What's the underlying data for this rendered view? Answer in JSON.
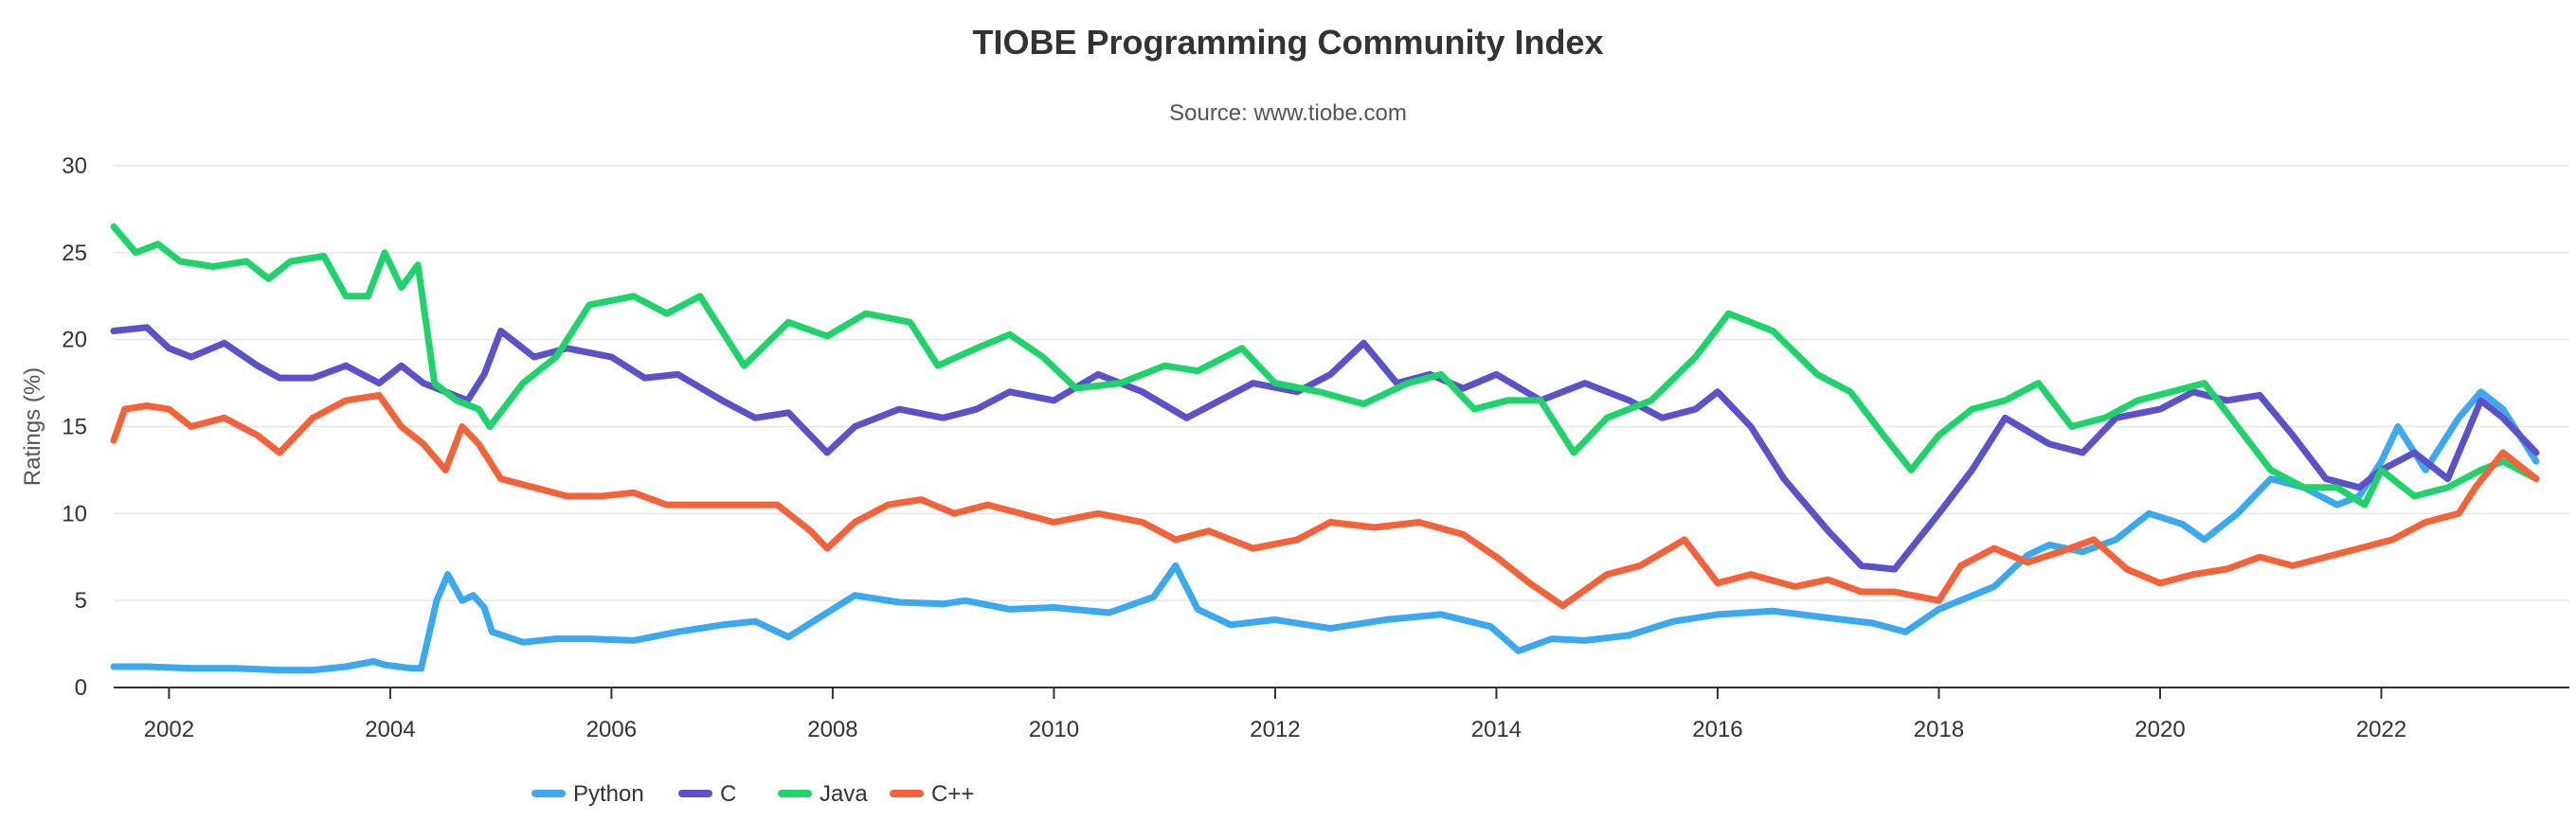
{
  "chart_data": {
    "type": "line",
    "title": "TIOBE Programming Community Index",
    "subtitle": "Source: www.tiobe.com",
    "ylabel": "Ratings (%)",
    "xlabel": "",
    "xlim": [
      2001.5,
      2023.7
    ],
    "ylim": [
      0,
      30
    ],
    "yticks": [
      0,
      5,
      10,
      15,
      20,
      25,
      30
    ],
    "xticks": [
      2002,
      2004,
      2006,
      2008,
      2010,
      2012,
      2014,
      2016,
      2018,
      2020,
      2022
    ],
    "grid": "horizontal",
    "legend": "bottom",
    "series": [
      {
        "name": "Python",
        "color": "#3ba8f0",
        "x": [
          2001.5,
          2001.8,
          2002.2,
          2002.6,
          2003.0,
          2003.3,
          2003.6,
          2003.85,
          2003.95,
          2004.2,
          2004.28,
          2004.42,
          2004.52,
          2004.65,
          2004.75,
          2004.85,
          2004.92,
          2005.2,
          2005.5,
          2005.8,
          2006.2,
          2006.6,
          2007.0,
          2007.3,
          2007.6,
          2008.0,
          2008.2,
          2008.6,
          2009.0,
          2009.2,
          2009.6,
          2010.0,
          2010.5,
          2010.9,
          2011.1,
          2011.3,
          2011.6,
          2012.0,
          2012.5,
          2013.0,
          2013.5,
          2013.95,
          2014.2,
          2014.5,
          2014.8,
          2015.2,
          2015.6,
          2016.0,
          2016.5,
          2017.0,
          2017.4,
          2017.7,
          2018.0,
          2018.5,
          2018.8,
          2019.0,
          2019.3,
          2019.6,
          2019.9,
          2020.2,
          2020.4,
          2020.7,
          2021.0,
          2021.3,
          2021.6,
          2021.8,
          2022.0,
          2022.15,
          2022.4,
          2022.7,
          2022.9,
          2023.1,
          2023.4
        ],
        "values": [
          1.2,
          1.2,
          1.1,
          1.1,
          1.0,
          1.0,
          1.2,
          1.5,
          1.3,
          1.1,
          1.1,
          5.0,
          6.5,
          5.0,
          5.3,
          4.6,
          3.2,
          2.6,
          2.8,
          2.8,
          2.7,
          3.2,
          3.6,
          3.8,
          2.9,
          4.5,
          5.3,
          4.9,
          4.8,
          5.0,
          4.5,
          4.6,
          4.3,
          5.2,
          7.0,
          4.5,
          3.6,
          3.9,
          3.4,
          3.9,
          4.2,
          3.5,
          2.1,
          2.8,
          2.7,
          3.0,
          3.8,
          4.2,
          4.4,
          4.0,
          3.7,
          3.2,
          4.5,
          5.8,
          7.6,
          8.2,
          7.8,
          8.5,
          10.0,
          9.4,
          8.5,
          10.0,
          12.0,
          11.5,
          10.5,
          11.0,
          13.0,
          15.0,
          12.5,
          15.5,
          17.0,
          16.0,
          13.0
        ]
      },
      {
        "name": "C",
        "color": "#5b52c9",
        "x": [
          2001.5,
          2001.8,
          2002.0,
          2002.2,
          2002.5,
          2002.8,
          2003.0,
          2003.3,
          2003.6,
          2003.9,
          2004.1,
          2004.3,
          2004.5,
          2004.7,
          2004.85,
          2005.0,
          2005.3,
          2005.6,
          2006.0,
          2006.3,
          2006.6,
          2007.0,
          2007.3,
          2007.6,
          2007.95,
          2008.2,
          2008.6,
          2009.0,
          2009.3,
          2009.6,
          2010.0,
          2010.4,
          2010.8,
          2011.2,
          2011.5,
          2011.8,
          2012.2,
          2012.5,
          2012.8,
          2013.1,
          2013.4,
          2013.7,
          2014.0,
          2014.4,
          2014.8,
          2015.2,
          2015.5,
          2015.8,
          2016.0,
          2016.3,
          2016.6,
          2017.0,
          2017.3,
          2017.6,
          2018.0,
          2018.3,
          2018.6,
          2019.0,
          2019.3,
          2019.6,
          2020.0,
          2020.3,
          2020.6,
          2020.9,
          2021.2,
          2021.5,
          2021.8,
          2022.0,
          2022.3,
          2022.6,
          2022.9,
          2023.1,
          2023.4
        ],
        "values": [
          20.5,
          20.7,
          19.5,
          19.0,
          19.8,
          18.5,
          17.8,
          17.8,
          18.5,
          17.5,
          18.5,
          17.5,
          17.0,
          16.5,
          18.0,
          20.5,
          19.0,
          19.5,
          19.0,
          17.8,
          18.0,
          16.5,
          15.5,
          15.8,
          13.5,
          15.0,
          16.0,
          15.5,
          16.0,
          17.0,
          16.5,
          18.0,
          17.0,
          15.5,
          16.5,
          17.5,
          17.0,
          18.0,
          19.8,
          17.5,
          18.0,
          17.2,
          18.0,
          16.5,
          17.5,
          16.5,
          15.5,
          16.0,
          17.0,
          15.0,
          12.0,
          9.0,
          7.0,
          6.8,
          10.0,
          12.5,
          15.5,
          14.0,
          13.5,
          15.5,
          16.0,
          17.0,
          16.5,
          16.8,
          14.5,
          12.0,
          11.5,
          12.5,
          13.5,
          12.0,
          16.5,
          15.5,
          13.5
        ]
      },
      {
        "name": "Java",
        "color": "#1ed46a",
        "x": [
          2001.5,
          2001.7,
          2001.9,
          2002.1,
          2002.4,
          2002.7,
          2002.9,
          2003.1,
          2003.4,
          2003.6,
          2003.8,
          2003.95,
          2004.1,
          2004.25,
          2004.4,
          2004.6,
          2004.8,
          2004.9,
          2005.2,
          2005.5,
          2005.8,
          2006.2,
          2006.5,
          2006.8,
          2007.2,
          2007.6,
          2007.95,
          2008.3,
          2008.7,
          2008.95,
          2009.3,
          2009.6,
          2009.9,
          2010.2,
          2010.6,
          2011.0,
          2011.3,
          2011.7,
          2012.0,
          2012.4,
          2012.8,
          2013.2,
          2013.5,
          2013.8,
          2014.1,
          2014.4,
          2014.7,
          2015.0,
          2015.4,
          2015.8,
          2016.1,
          2016.5,
          2016.9,
          2017.2,
          2017.5,
          2017.75,
          2018.0,
          2018.3,
          2018.6,
          2018.9,
          2019.2,
          2019.5,
          2019.8,
          2020.1,
          2020.4,
          2020.7,
          2021.0,
          2021.3,
          2021.6,
          2021.85,
          2022.0,
          2022.3,
          2022.6,
          2022.9,
          2023.1,
          2023.4
        ],
        "values": [
          26.5,
          25.0,
          25.5,
          24.5,
          24.2,
          24.5,
          23.5,
          24.5,
          24.8,
          22.5,
          22.5,
          25.0,
          23.0,
          24.3,
          17.5,
          16.5,
          16.0,
          15.0,
          17.5,
          19.0,
          22.0,
          22.5,
          21.5,
          22.5,
          18.5,
          21.0,
          20.2,
          21.5,
          21.0,
          18.5,
          19.5,
          20.3,
          19.0,
          17.2,
          17.5,
          18.5,
          18.2,
          19.5,
          17.5,
          17.0,
          16.3,
          17.5,
          18.0,
          16.0,
          16.5,
          16.5,
          13.5,
          15.5,
          16.5,
          19.0,
          21.5,
          20.5,
          18.0,
          17.0,
          14.5,
          12.5,
          14.5,
          16.0,
          16.5,
          17.5,
          15.0,
          15.5,
          16.5,
          17.0,
          17.5,
          15.0,
          12.5,
          11.5,
          11.5,
          10.5,
          12.5,
          11.0,
          11.5,
          12.5,
          13.0,
          12.0
        ]
      },
      {
        "name": "C++",
        "color": "#f4623a",
        "x": [
          2001.5,
          2001.6,
          2001.8,
          2002.0,
          2002.2,
          2002.5,
          2002.8,
          2003.0,
          2003.3,
          2003.6,
          2003.9,
          2004.1,
          2004.3,
          2004.5,
          2004.65,
          2004.8,
          2005.0,
          2005.3,
          2005.6,
          2005.9,
          2006.2,
          2006.5,
          2006.8,
          2007.2,
          2007.5,
          2007.8,
          2007.95,
          2008.2,
          2008.5,
          2008.8,
          2009.1,
          2009.4,
          2009.7,
          2010.0,
          2010.4,
          2010.8,
          2011.1,
          2011.4,
          2011.8,
          2012.2,
          2012.5,
          2012.9,
          2013.3,
          2013.7,
          2014.0,
          2014.3,
          2014.6,
          2015.0,
          2015.3,
          2015.7,
          2016.0,
          2016.3,
          2016.7,
          2017.0,
          2017.3,
          2017.6,
          2018.0,
          2018.2,
          2018.5,
          2018.8,
          2019.1,
          2019.4,
          2019.7,
          2020.0,
          2020.3,
          2020.6,
          2020.9,
          2021.2,
          2021.5,
          2021.8,
          2022.1,
          2022.4,
          2022.7,
          2022.85,
          2023.1,
          2023.4
        ],
        "values": [
          14.2,
          16.0,
          16.2,
          16.0,
          15.0,
          15.5,
          14.5,
          13.5,
          15.5,
          16.5,
          16.8,
          15.0,
          14.0,
          12.5,
          15.0,
          14.0,
          12.0,
          11.5,
          11.0,
          11.0,
          11.2,
          10.5,
          10.5,
          10.5,
          10.5,
          9.0,
          8.0,
          9.5,
          10.5,
          10.8,
          10.0,
          10.5,
          10.0,
          9.5,
          10.0,
          9.5,
          8.5,
          9.0,
          8.0,
          8.5,
          9.5,
          9.2,
          9.5,
          8.8,
          7.5,
          6.0,
          4.7,
          6.5,
          7.0,
          8.5,
          6.0,
          6.5,
          5.8,
          6.2,
          5.5,
          5.5,
          5.0,
          7.0,
          8.0,
          7.2,
          7.8,
          8.5,
          6.8,
          6.0,
          6.5,
          6.8,
          7.5,
          7.0,
          7.5,
          8.0,
          8.5,
          9.5,
          10.0,
          11.5,
          13.5,
          12.0
        ]
      }
    ]
  }
}
